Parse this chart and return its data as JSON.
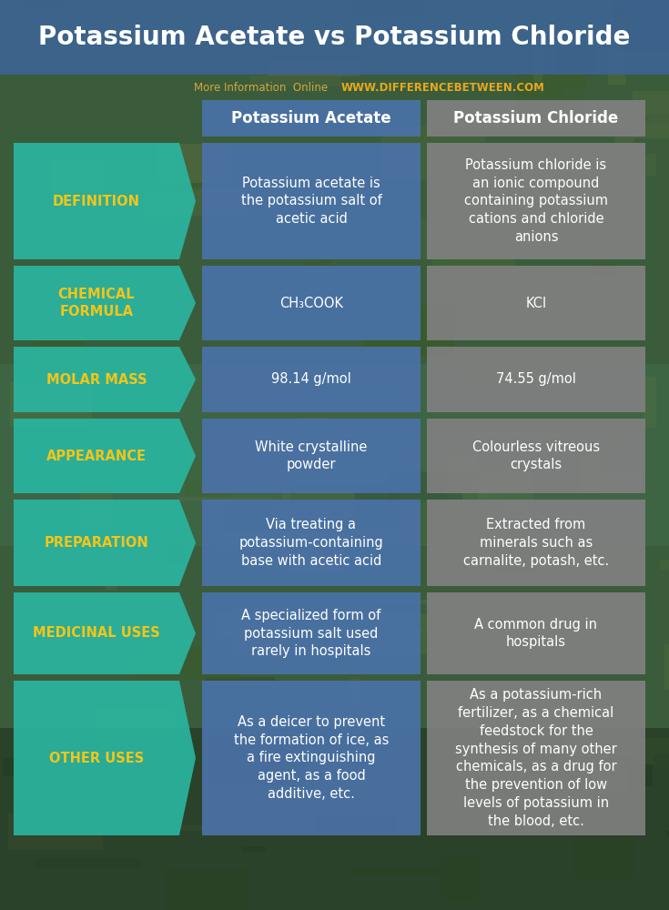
{
  "title": "Potassium Acetate vs Potassium Chloride",
  "subtitle_gray": "More Information  Online  ",
  "subtitle_url": "WWW.DIFFERENCEBETWEEN.COM",
  "col1_header": "Potassium Acetate",
  "col2_header": "Potassium Chloride",
  "title_bg": "#3d6494",
  "header_col1_bg": "#4a72a8",
  "header_col2_bg": "#808080",
  "cell_col1_bg": "#4a72a8",
  "cell_col2_bg": "#808080",
  "label_bg": "#2ab5a0",
  "label_text_color": "#f5c518",
  "cell_text_color": "#ffffff",
  "title_text_color": "#ffffff",
  "subtitle_gray_color": "#d4a840",
  "subtitle_url_color": "#e8a820",
  "rows": [
    {
      "label": "DEFINITION",
      "col1": "Potassium acetate is\nthe potassium salt of\nacetic acid",
      "col2": "Potassium chloride is\nan ionic compound\ncontaining potassium\ncations and chloride\nanions"
    },
    {
      "label": "CHEMICAL\nFORMULA",
      "col1": "CH₃COOK",
      "col2": "KCl"
    },
    {
      "label": "MOLAR MASS",
      "col1": "98.14 g/mol",
      "col2": "74.55 g/mol"
    },
    {
      "label": "APPEARANCE",
      "col1": "White crystalline\npowder",
      "col2": "Colourless vitreous\ncrystals"
    },
    {
      "label": "PREPARATION",
      "col1": "Via treating a\npotassium-containing\nbase with acetic acid",
      "col2": "Extracted from\nminerals such as\ncarnalite, potash, etc."
    },
    {
      "label": "MEDICINAL USES",
      "col1": "A specialized form of\npotassium salt used\nrarely in hospitals",
      "col2": "A common drug in\nhospitals"
    },
    {
      "label": "OTHER USES",
      "col1": "As a deicer to prevent\nthe formation of ice, as\na fire extinguishing\nagent, as a food\nadditive, etc.",
      "col2": "As a potassium-rich\nfertilizer, as a chemical\nfeedstock for the\nsynthesis of many other\nchemicals, as a drug for\nthe prevention of low\nlevels of potassium in\nthe blood, etc."
    }
  ],
  "bg_colors": [
    "#3a5c3a",
    "#2d4a2d",
    "#4a6a3a",
    "#3a5a2a",
    "#506840"
  ],
  "title_fontsize": 20,
  "header_fontsize": 12,
  "label_fontsize": 10.5,
  "cell_fontsize": 10.5
}
